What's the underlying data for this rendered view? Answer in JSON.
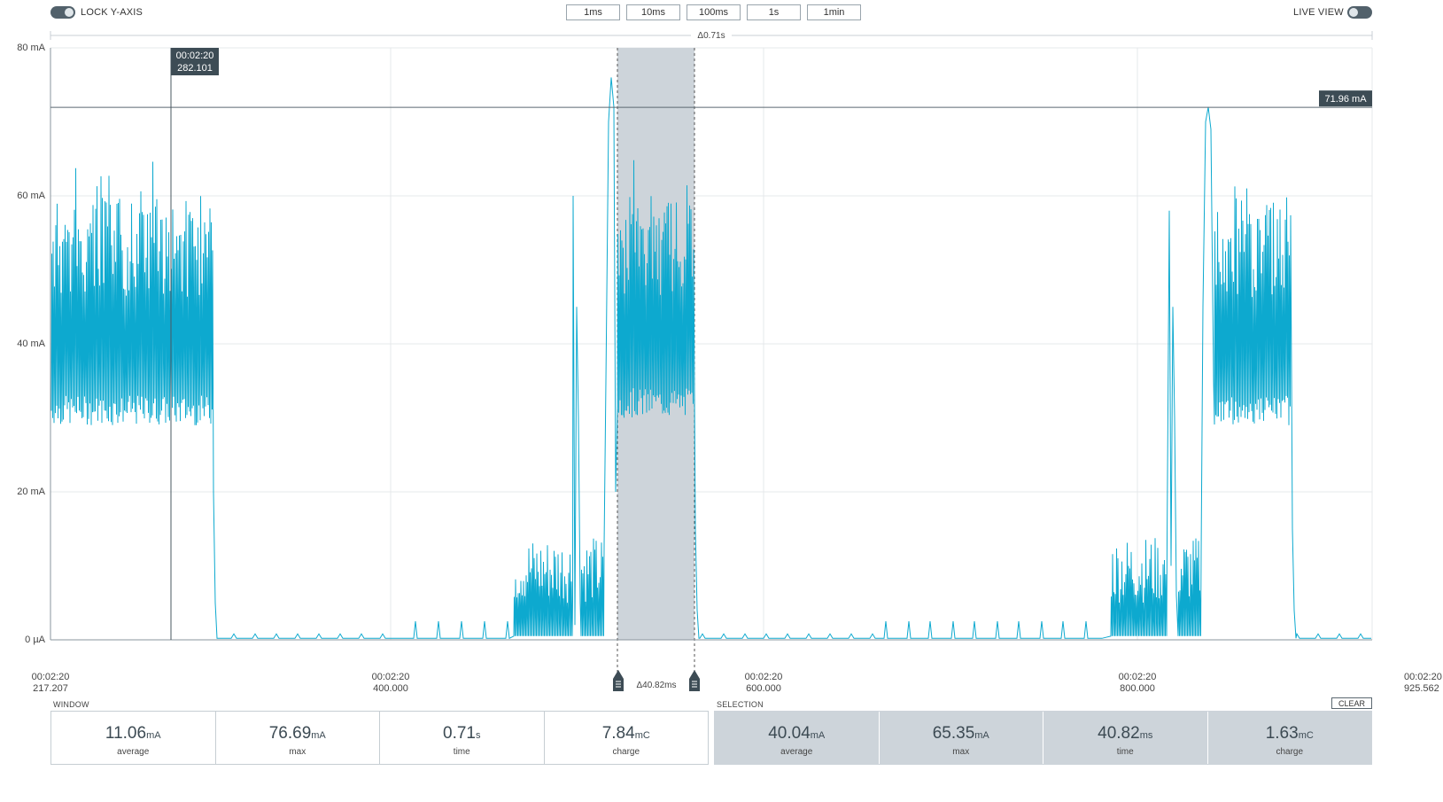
{
  "top_bar": {
    "lock_y_axis_label": "LOCK Y-AXIS",
    "live_view_label": "LIVE VIEW",
    "zoom_buttons": [
      "1ms",
      "10ms",
      "100ms",
      "1s",
      "1min"
    ]
  },
  "window_span_label": "Δ0.71s",
  "cursor": {
    "time": "00:02:20",
    "value": "282.101"
  },
  "level_marker": {
    "label": "71.96 mA",
    "value_mA": 71.96
  },
  "y_axis": {
    "labels": [
      "80 mA",
      "60 mA",
      "40 mA",
      "20 mA",
      "0 µA"
    ]
  },
  "x_axis": {
    "ticks": [
      {
        "time": "00:02:20",
        "ms": "217.207"
      },
      {
        "time": "00:02:20",
        "ms": "400.000"
      },
      {
        "time": "00:02:20",
        "ms": "600.000"
      },
      {
        "time": "00:02:20",
        "ms": "800.000"
      },
      {
        "time": "00:02:20",
        "ms": "925.562"
      }
    ]
  },
  "selection_span_label": "Δ40.82ms",
  "window_stats": {
    "title": "WINDOW",
    "items": [
      {
        "value": "11.06",
        "unit": "mA",
        "name": "average"
      },
      {
        "value": "76.69",
        "unit": "mA",
        "name": "max"
      },
      {
        "value": "0.71",
        "unit": "s",
        "name": "time"
      },
      {
        "value": "7.84",
        "unit": "mC",
        "name": "charge"
      }
    ]
  },
  "selection_stats": {
    "title": "SELECTION",
    "clear_label": "CLEAR",
    "items": [
      {
        "value": "40.04",
        "unit": "mA",
        "name": "average"
      },
      {
        "value": "65.35",
        "unit": "mA",
        "name": "max"
      },
      {
        "value": "40.82",
        "unit": "ms",
        "name": "time"
      },
      {
        "value": "1.63",
        "unit": "mC",
        "name": "charge"
      }
    ]
  },
  "colors": {
    "trace": "#0da9cf",
    "selection": "#cdd4da",
    "label_bg": "#3d4c55",
    "grid": "#e3e6e8"
  }
}
